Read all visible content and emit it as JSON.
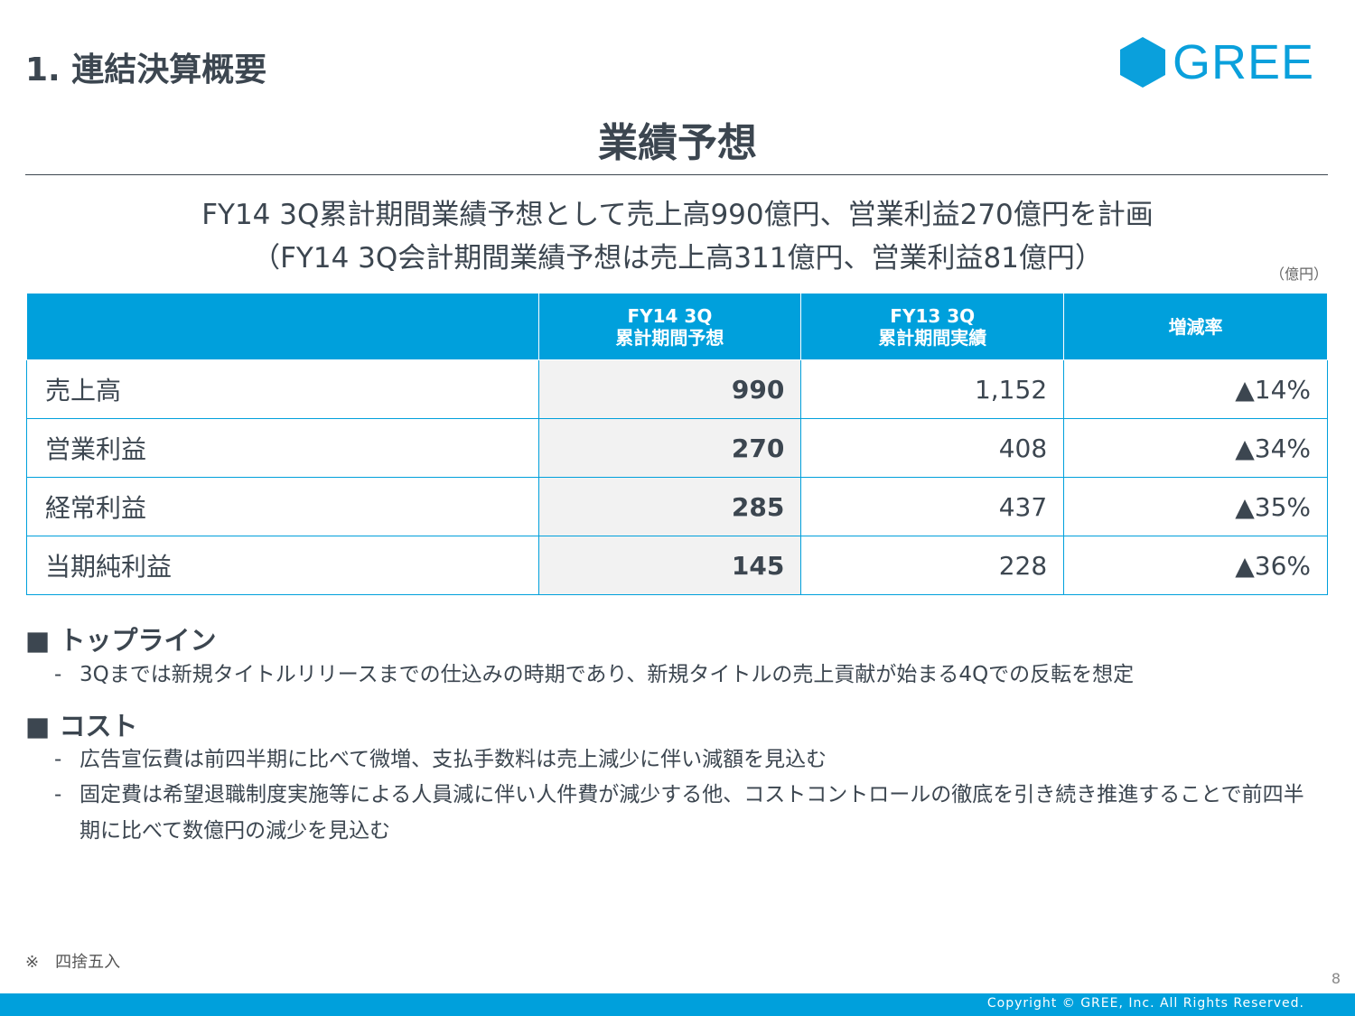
{
  "section_title": "1. 連結決算概要",
  "logo": {
    "text": "GREE",
    "color": "#0aa0dc"
  },
  "page_title": "業績予想",
  "subtitle_1": "FY14 3Q累計期間業績予想として売上高990億円、営業利益270億円を計画",
  "subtitle_2": "（FY14 3Q会計期間業績予想は売上高311億円、営業利益81億円）",
  "unit": "（億円）",
  "table": {
    "headers": [
      "",
      "FY14 3Q\n累計期間予想",
      "FY13 3Q\n累計期間実績",
      "増減率"
    ],
    "rows": [
      {
        "label": "売上高",
        "fy14": "990",
        "fy13": "1,152",
        "change": "▲14%"
      },
      {
        "label": "営業利益",
        "fy14": "270",
        "fy13": "408",
        "change": "▲34%"
      },
      {
        "label": "経常利益",
        "fy14": "285",
        "fy13": "437",
        "change": "▲35%"
      },
      {
        "label": "当期純利益",
        "fy14": "145",
        "fy13": "228",
        "change": "▲36%"
      }
    ]
  },
  "sections": [
    {
      "title": "■ トップライン",
      "bullets": [
        "3Qまでは新規タイトルリリースまでの仕込みの時期であり、新規タイトルの売上貢献が始まる4Qでの反転を想定"
      ]
    },
    {
      "title": "■ コスト",
      "bullets": [
        "広告宣伝費は前四半期に比べて微増、支払手数料は売上減少に伴い減額を見込む",
        "固定費は希望退職制度実施等による人員減に伴い人件費が減少する他、コストコントロールの徹底を引き続き推進することで前四半期に比べて数億円の減少を見込む"
      ]
    }
  ],
  "bullet_marker": "-",
  "note": "※　四捨五入",
  "page_number": "8",
  "copyright": "Copyright © GREE, Inc. All Rights Reserved.",
  "accent_color": "#00a0dc"
}
